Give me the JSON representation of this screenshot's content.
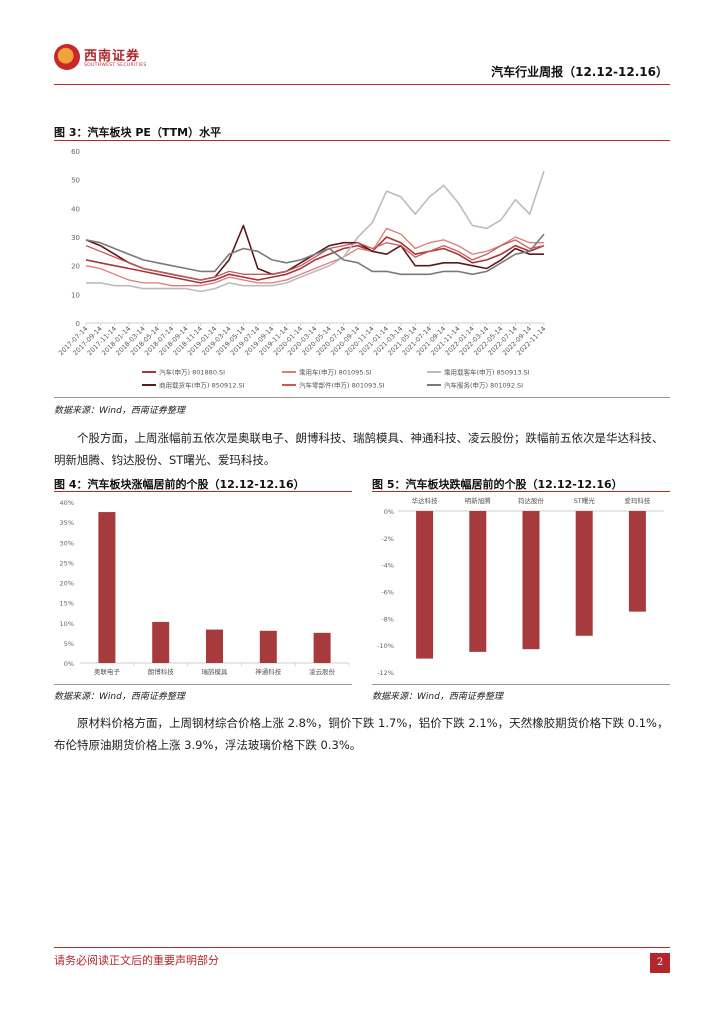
{
  "header": {
    "logo_cn": "西南证券",
    "logo_en": "SOUTHWEST SECURITIES",
    "report_title": "汽车行业周报（12.12-12.16）"
  },
  "figure3": {
    "title": "图 3：汽车板块 PE（TTM）水平",
    "source": "数据来源：Wind，西南证券整理"
  },
  "para1": {
    "text": "个股方面，上周涨幅前五依次是奥联电子、朗博科技、瑞鹄模具、神通科技、凌云股份；跌幅前五依次是华达科技、明新旭腾、钧达股份、ST曙光、爱玛科技。"
  },
  "figure4": {
    "title": "图 4：汽车板块涨幅居前的个股（12.12-12.16）",
    "source": "数据来源：Wind，西南证券整理"
  },
  "figure5": {
    "title": "图 5：汽车板块跌幅居前的个股（12.12-12.16）",
    "source": "数据来源：Wind，西南证券整理"
  },
  "para2": {
    "text": "原材料价格方面，上周钢材综合价格上涨 2.8%，铜价下跌 1.7%，铝价下跌 2.1%，天然橡胶期货价格下跌 0.1%，布伦特原油期货价格上涨 3.9%，浮法玻璃价格下跌 0.3%。"
  },
  "footer": {
    "note": "请务必阅读正文后的重要声明部分",
    "page": "2"
  },
  "colors": {
    "brand_red": "#b3262b",
    "bar_red": "#a63a3c"
  },
  "chart_data": [
    {
      "id": "figure3",
      "type": "line",
      "title": "",
      "ylim": [
        0,
        60
      ],
      "yticks": [
        0,
        10,
        20,
        30,
        40,
        50,
        60
      ],
      "x": [
        "2017-07-14",
        "2017-09-14",
        "2017-11-14",
        "2018-01-14",
        "2018-03-14",
        "2018-05-14",
        "2018-07-14",
        "2018-09-14",
        "2018-11-14",
        "2019-01-14",
        "2019-03-14",
        "2019-05-14",
        "2019-07-14",
        "2019-09-14",
        "2019-11-14",
        "2020-01-14",
        "2020-03-14",
        "2020-05-14",
        "2020-07-14",
        "2020-09-14",
        "2020-11-14",
        "2021-01-14",
        "2021-03-14",
        "2021-05-14",
        "2021-07-14",
        "2021-09-14",
        "2021-11-14",
        "2022-01-14",
        "2022-03-14",
        "2022-05-14",
        "2022-07-14",
        "2022-09-14",
        "2022-11-14"
      ],
      "legend_position": "bottom",
      "series": [
        {
          "name": "汽车(申万) 801880.SI",
          "color": "#a83538",
          "width": 1.6,
          "values": [
            22,
            21,
            20,
            19,
            18,
            17,
            16,
            15,
            14,
            15,
            17,
            16,
            15,
            16,
            17,
            19,
            22,
            24,
            26,
            27,
            25,
            30,
            28,
            24,
            25,
            26,
            24,
            21,
            22,
            24,
            27,
            25,
            27
          ]
        },
        {
          "name": "乘用车(申万) 801095.SI",
          "color": "#e07a7a",
          "width": 1.3,
          "values": [
            20,
            19,
            17,
            15,
            14,
            14,
            13,
            13,
            13,
            14,
            16,
            15,
            14,
            14,
            15,
            17,
            19,
            21,
            23,
            26,
            25,
            33,
            31,
            26,
            28,
            29,
            27,
            24,
            25,
            27,
            30,
            28,
            28
          ]
        },
        {
          "name": "乘用载客车(申万) 850913.SI",
          "color": "#bcbcbc",
          "width": 1.6,
          "values": [
            14,
            14,
            13,
            13,
            12,
            12,
            12,
            12,
            11,
            12,
            14,
            13,
            13,
            13,
            14,
            16,
            18,
            20,
            23,
            30,
            35,
            46,
            44,
            38,
            44,
            48,
            42,
            34,
            33,
            36,
            43,
            38,
            53
          ]
        },
        {
          "name": "商用载货车(申万) 850912.SI",
          "color": "#5a1a1c",
          "width": 1.6,
          "values": [
            29,
            27,
            24,
            21,
            19,
            18,
            17,
            16,
            15,
            16,
            22,
            34,
            19,
            17,
            18,
            21,
            24,
            27,
            28,
            28,
            25,
            24,
            27,
            20,
            20,
            21,
            21,
            20,
            19,
            22,
            26,
            24,
            24
          ]
        },
        {
          "name": "汽车零部件(申万) 801093.SI",
          "color": "#c85a5a",
          "width": 1.3,
          "values": [
            27,
            25,
            23,
            21,
            19,
            18,
            17,
            16,
            15,
            16,
            18,
            17,
            17,
            17,
            18,
            20,
            23,
            26,
            27,
            28,
            26,
            28,
            27,
            23,
            25,
            27,
            25,
            22,
            24,
            27,
            29,
            26,
            27
          ]
        },
        {
          "name": "汽车服务(申万) 801092.SI",
          "color": "#7a7a7a",
          "width": 1.6,
          "values": [
            29,
            28,
            26,
            24,
            22,
            21,
            20,
            19,
            18,
            18,
            24,
            26,
            25,
            22,
            21,
            22,
            24,
            26,
            22,
            21,
            18,
            18,
            17,
            17,
            17,
            18,
            18,
            17,
            18,
            21,
            24,
            25,
            31
          ]
        }
      ]
    },
    {
      "id": "figure4",
      "type": "bar",
      "title": "",
      "categories": [
        "奥联电子",
        "朗博科技",
        "瑞鹄模具",
        "神通科技",
        "凌云股份"
      ],
      "values": [
        37.5,
        10.2,
        8.3,
        8.0,
        7.5
      ],
      "ylim": [
        0,
        40
      ],
      "yticks": [
        "0%",
        "5%",
        "10%",
        "15%",
        "20%",
        "25%",
        "30%",
        "35%",
        "40%"
      ],
      "color": "#a63a3c"
    },
    {
      "id": "figure5",
      "type": "bar",
      "title": "",
      "categories": [
        "华达科技",
        "明新旭腾",
        "钧达股份",
        "ST曙光",
        "爱玛科技"
      ],
      "values": [
        -11.0,
        -10.5,
        -10.3,
        -9.3,
        -7.5
      ],
      "ylim": [
        -12,
        0
      ],
      "yticks": [
        "0%",
        "-2%",
        "-4%",
        "-6%",
        "-8%",
        "-10%",
        "-12%"
      ],
      "color": "#a63a3c"
    }
  ]
}
